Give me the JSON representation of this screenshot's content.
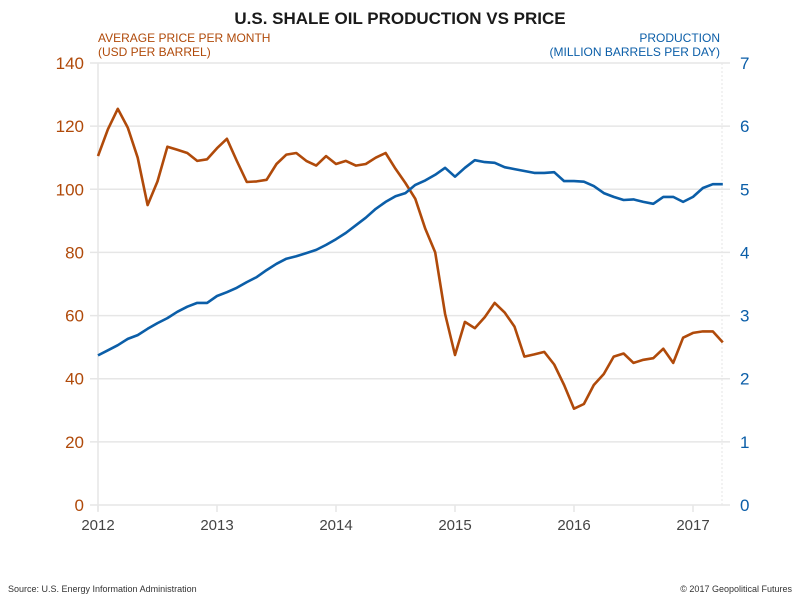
{
  "chart_data": {
    "type": "line",
    "title": "U.S. SHALE OIL PRODUCTION VS PRICE",
    "left_axis_label": [
      "AVERAGE PRICE PER MONTH",
      "(USD PER BARREL)"
    ],
    "right_axis_label": [
      "PRODUCTION",
      "(MILLION BARRELS PER DAY)"
    ],
    "left_ylim": [
      0,
      140
    ],
    "left_ticks": [
      "0",
      "20",
      "40",
      "60",
      "80",
      "100",
      "120",
      "140"
    ],
    "right_ylim": [
      0,
      7
    ],
    "right_ticks": [
      "0",
      "1",
      "2",
      "3",
      "4",
      "5",
      "6",
      "7"
    ],
    "x_start": "2012-01",
    "x_ticks": [
      "2012",
      "2013",
      "2014",
      "2015",
      "2016",
      "2017"
    ],
    "grid": true,
    "colors": {
      "price": "#b04a0a",
      "production": "#0b5ea8",
      "grid": "#e6e6e6",
      "title": "#1a1a1a"
    },
    "series": [
      {
        "name": "Average price per month (USD per barrel)",
        "axis": "left",
        "values": [
          110.5,
          119,
          125.5,
          119.5,
          110,
          95,
          102.5,
          113.5,
          112.5,
          111.5,
          109,
          109.5,
          113,
          116,
          109,
          102.3,
          102.5,
          103,
          108,
          111,
          111.5,
          109,
          107.5,
          110.5,
          108,
          109,
          107.5,
          108,
          110,
          111.5,
          106.5,
          102,
          97,
          87.5,
          80,
          60.5,
          47.5,
          58,
          56,
          59.5,
          64,
          61,
          56.5,
          47,
          47.7,
          48.5,
          44.5,
          38,
          30.5,
          32,
          38,
          41.5,
          47,
          48,
          45,
          46,
          46.5,
          49.5,
          45,
          53,
          54.5,
          55,
          55,
          51.5
        ]
      },
      {
        "name": "Production (million barrels per day)",
        "axis": "right",
        "values": [
          2.37,
          2.45,
          2.53,
          2.63,
          2.69,
          2.79,
          2.88,
          2.96,
          3.06,
          3.14,
          3.2,
          3.2,
          3.31,
          3.37,
          3.44,
          3.53,
          3.61,
          3.72,
          3.82,
          3.9,
          3.94,
          3.99,
          4.04,
          4.12,
          4.21,
          4.31,
          4.43,
          4.55,
          4.69,
          4.8,
          4.89,
          4.94,
          5.07,
          5.14,
          5.23,
          5.34,
          5.2,
          5.34,
          5.46,
          5.43,
          5.42,
          5.35,
          5.32,
          5.29,
          5.26,
          5.26,
          5.27,
          5.13,
          5.13,
          5.12,
          5.05,
          4.94,
          4.88,
          4.83,
          4.84,
          4.8,
          4.77,
          4.88,
          4.88,
          4.8,
          4.88,
          5.02,
          5.08,
          5.08
        ]
      }
    ]
  },
  "footer": {
    "source": "Source: U.S. Energy Information Administration",
    "copyright": "© 2017 Geopolitical Futures"
  }
}
